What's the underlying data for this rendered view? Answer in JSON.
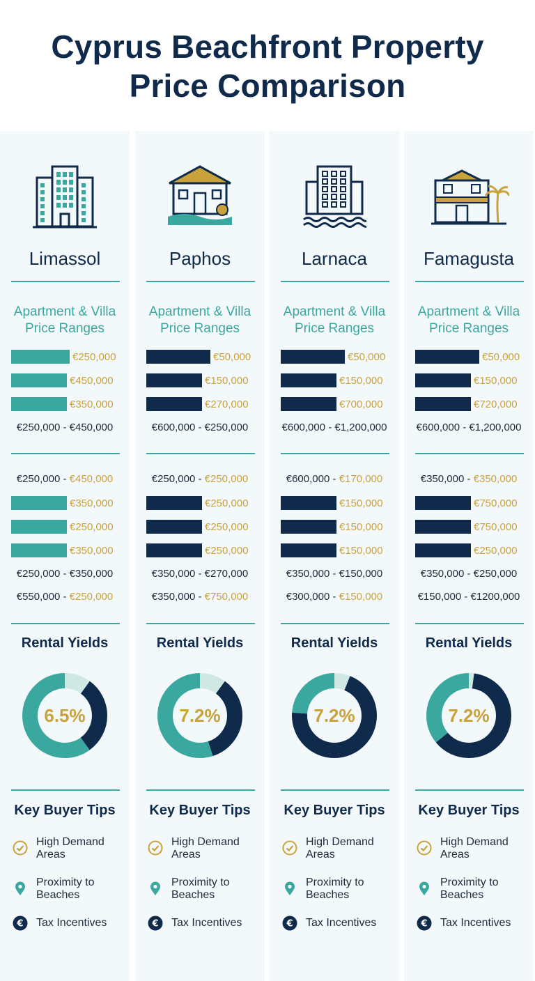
{
  "title_line1": "Cyprus Beachfront Property",
  "title_line2": "Price Comparison",
  "colors": {
    "navy": "#0f2a4a",
    "teal": "#3aa89f",
    "gold": "#c9a23c",
    "light_teal": "#cfe8e4"
  },
  "columns": [
    {
      "city": "Limassol",
      "icon": "apartment-tower-icon",
      "bar_color": "#3aa89f",
      "subhead_line1": "Apartment & Villa",
      "subhead_line2": "Price Ranges",
      "bars_a": [
        "€250,000",
        "€450,000",
        "€350,000"
      ],
      "range_a": "€250,000 - €450,000",
      "range_b": {
        "low": "€250,000 - ",
        "high": "€450,000"
      },
      "bars_b": [
        "€350,000",
        "€250,000",
        "€350,000"
      ],
      "range_c": "€250,000 - €350,000",
      "range_d": {
        "low": "€550,000 - ",
        "high": "€250,000"
      },
      "rental_title": "Rental Yields",
      "yield": "6.5%",
      "tips_title": "Key Buyer Tips",
      "tips": [
        "High Demand Areas",
        "Proximity to Beaches",
        "Tax Incentives"
      ]
    },
    {
      "city": "Paphos",
      "icon": "villa-sea-icon",
      "bar_color": "#0f2a4a",
      "subhead_line1": "Apartment & Villa",
      "subhead_line2": "Price Ranges",
      "bars_a": [
        "€50,000",
        "€150,000",
        "€270,000"
      ],
      "range_a": "€600,000 - €250,000",
      "range_b": {
        "low": "€250,000 - ",
        "high": "€250,000"
      },
      "bars_b": [
        "€250,000",
        "€250,000",
        "€250,000"
      ],
      "range_c": "€350,000 - €270,000",
      "range_d": {
        "low": "€350,000 - ",
        "high": "€750,000"
      },
      "rental_title": "Rental Yields",
      "yield": "7.2%",
      "tips_title": "Key Buyer Tips",
      "tips": [
        "High Demand Areas",
        "Proximity to Beaches",
        "Tax Incentives"
      ]
    },
    {
      "city": "Larnaca",
      "icon": "seaside-apartment-icon",
      "bar_color": "#0f2a4a",
      "subhead_line1": "Apartment & Villa",
      "subhead_line2": "Price Ranges",
      "bars_a": [
        "€50,000",
        "€150,000",
        "€700,000"
      ],
      "range_a": "€600,000 - €1,200,000",
      "range_b": {
        "low": "€600,000 - ",
        "high": "€170,000"
      },
      "bars_b": [
        "€150,000",
        "€150,000",
        "€150,000"
      ],
      "range_c": "€350,000 - €150,000",
      "range_d": {
        "low": "€300,000 - ",
        "high": "€150,000"
      },
      "rental_title": "Rental Yields",
      "yield": "7.2%",
      "tips_title": "Key Buyer Tips",
      "tips": [
        "High Demand Areas",
        "Proximity to Beaches",
        "Tax Incentives"
      ]
    },
    {
      "city": "Famagusta",
      "icon": "beach-house-palm-icon",
      "bar_color": "#0f2a4a",
      "subhead_line1": "Apartment & Villa",
      "subhead_line2": "Price Ranges",
      "bars_a": [
        "€50,000",
        "€150,000",
        "€720,000"
      ],
      "range_a": "€600,000 - €1,200,000",
      "range_b": {
        "low": "€350,000 - ",
        "high": "€350,000"
      },
      "bars_b": [
        "€750,000",
        "€750,000",
        "€250,000"
      ],
      "range_c": "€350,000 - €250,000",
      "range_d": {
        "low": "€150,000 - €1200,000",
        "high": ""
      },
      "rental_title": "Rental Yields",
      "yield": "7.2%",
      "tips_title": "Key Buyer Tips",
      "tips": [
        "High Demand Areas",
        "Proximity to Beaches",
        "Tax Incentives"
      ]
    }
  ],
  "chart_data": {
    "type": "bar",
    "categories": [
      "Limassol",
      "Paphos",
      "Larnaca",
      "Famagusta"
    ],
    "bar_values_top": [
      [
        "€250,000",
        "€450,000",
        "€350,000"
      ],
      [
        "€50,000",
        "€150,000",
        "€270,000"
      ],
      [
        "€50,000",
        "€150,000",
        "€700,000"
      ],
      [
        "€50,000",
        "€150,000",
        "€720,000"
      ]
    ],
    "bar_values_bottom": [
      [
        "€350,000",
        "€250,000",
        "€350,000"
      ],
      [
        "€250,000",
        "€250,000",
        "€250,000"
      ],
      [
        "€150,000",
        "€150,000",
        "€150,000"
      ],
      [
        "€750,000",
        "€750,000",
        "€250,000"
      ]
    ],
    "rental_yields": [
      6.5,
      7.2,
      7.2,
      7.2
    ],
    "donut_segments": [
      {
        "light": 0.1,
        "navy": 0.3,
        "teal": 0.6
      },
      {
        "light": 0.1,
        "navy": 0.35,
        "teal": 0.55
      },
      {
        "light": 0.06,
        "navy": 0.7,
        "teal": 0.24
      },
      {
        "light": 0.02,
        "navy": 0.62,
        "teal": 0.36
      }
    ]
  }
}
